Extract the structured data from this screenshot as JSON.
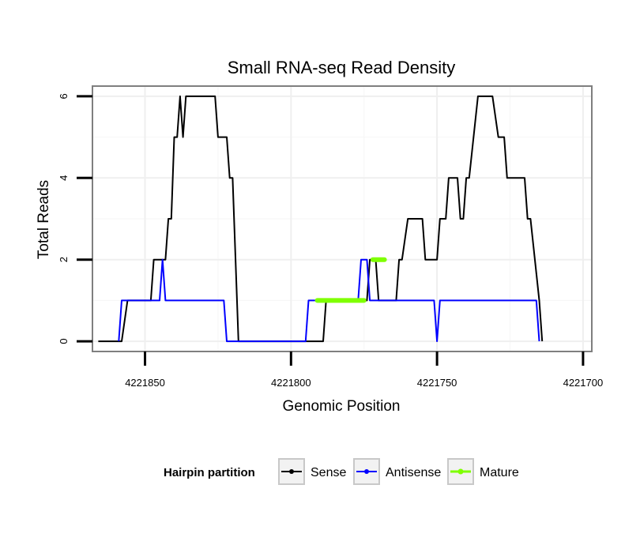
{
  "chart_data": {
    "type": "line",
    "title": "Small RNA-seq Read Density",
    "xlabel": "Genomic Position",
    "ylabel": "Total Reads",
    "x_reversed": true,
    "xlim": [
      4221868,
      4221697
    ],
    "ylim": [
      -0.25,
      6.25
    ],
    "x_ticks": [
      4221850,
      4221800,
      4221750,
      4221700
    ],
    "x_tick_labels": [
      "4221850",
      "4221800",
      "4221750",
      "4221700"
    ],
    "y_ticks": [
      0,
      2,
      4,
      6
    ],
    "y_tick_labels": [
      "0",
      "2",
      "4",
      "6"
    ],
    "grid": true,
    "legend": {
      "title": "Hairpin partition",
      "position": "bottom",
      "entries": [
        "Sense",
        "Antisense",
        "Mature"
      ]
    },
    "series": [
      {
        "name": "Sense",
        "color": "#000000",
        "points": [
          [
            4221866,
            0
          ],
          [
            4221858,
            0
          ],
          [
            4221856,
            1
          ],
          [
            4221848,
            1
          ],
          [
            4221847,
            2
          ],
          [
            4221843,
            2
          ],
          [
            4221842,
            3
          ],
          [
            4221841,
            3
          ],
          [
            4221840,
            5
          ],
          [
            4221839,
            5
          ],
          [
            4221838,
            6
          ],
          [
            4221837,
            5
          ],
          [
            4221836,
            6
          ],
          [
            4221826,
            6
          ],
          [
            4221825,
            5
          ],
          [
            4221822,
            5
          ],
          [
            4221821,
            4
          ],
          [
            4221820,
            4
          ],
          [
            4221818,
            0
          ],
          [
            4221806,
            0
          ],
          [
            4221795,
            0
          ],
          [
            4221789,
            0
          ],
          [
            4221788,
            1
          ],
          [
            4221774,
            1
          ],
          [
            4221773,
            2
          ],
          [
            4221771,
            2
          ],
          [
            4221770,
            1
          ],
          [
            4221764,
            1
          ],
          [
            4221763,
            2
          ],
          [
            4221762,
            2
          ],
          [
            4221760,
            3
          ],
          [
            4221755,
            3
          ],
          [
            4221754,
            2
          ],
          [
            4221750,
            2
          ],
          [
            4221749,
            3
          ],
          [
            4221747,
            3
          ],
          [
            4221746,
            4
          ],
          [
            4221743,
            4
          ],
          [
            4221742,
            3
          ],
          [
            4221741,
            3
          ],
          [
            4221740,
            4
          ],
          [
            4221739,
            4
          ],
          [
            4221736,
            6
          ],
          [
            4221731,
            6
          ],
          [
            4221729,
            5
          ],
          [
            4221727,
            5
          ],
          [
            4221726,
            4
          ],
          [
            4221720,
            4
          ],
          [
            4221719,
            3
          ],
          [
            4221718,
            3
          ],
          [
            4221715,
            1
          ],
          [
            4221714,
            0
          ]
        ]
      },
      {
        "name": "Antisense",
        "color": "#0000ff",
        "points": [
          [
            4221859,
            0
          ],
          [
            4221858,
            1
          ],
          [
            4221845,
            1
          ],
          [
            4221844,
            2
          ],
          [
            4221843,
            1
          ],
          [
            4221823,
            1
          ],
          [
            4221822,
            0
          ],
          [
            4221795,
            0
          ],
          [
            4221794,
            1
          ],
          [
            4221777,
            1
          ],
          [
            4221776,
            2
          ],
          [
            4221774,
            2
          ],
          [
            4221773,
            1
          ],
          [
            4221751,
            1
          ],
          [
            4221750,
            0
          ],
          [
            4221749,
            1
          ],
          [
            4221716,
            1
          ],
          [
            4221715,
            0
          ]
        ]
      },
      {
        "name": "Mature",
        "color": "#7fff00",
        "segments": [
          {
            "from": 4221791,
            "to": 4221775,
            "y": 1
          },
          {
            "from": 4221772,
            "to": 4221768,
            "y": 2
          }
        ]
      }
    ]
  }
}
